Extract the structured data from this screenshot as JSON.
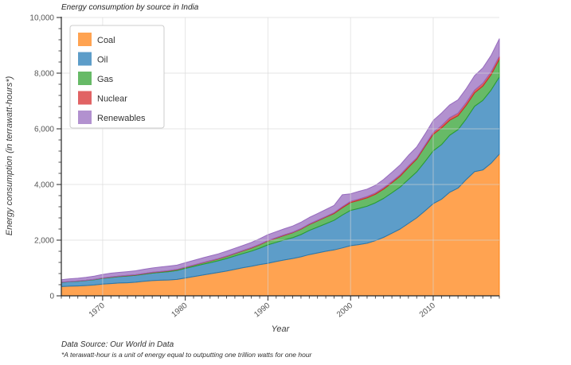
{
  "title": "Energy consumption by source in India",
  "x_axis": {
    "label": "Year",
    "ticks": [
      1970,
      1980,
      1990,
      2000,
      2010
    ],
    "range": [
      1965,
      2018
    ]
  },
  "y_axis": {
    "label": "Energy consumption (in terrawatt-hours*)",
    "ticks": [
      0,
      2000,
      4000,
      6000,
      8000,
      10000
    ],
    "tick_labels": [
      "0",
      "2,000",
      "4,000",
      "6,000",
      "8,000",
      "10,000"
    ],
    "minor_step": 400,
    "range": [
      0,
      10000
    ]
  },
  "footer": {
    "source": "Data Source: Our World in Data",
    "note": "*A terawatt-hour is a unit of energy equal to outputting one trillion watts for one hour"
  },
  "style": {
    "grid_color": "#d6d6d6",
    "spine_color": "#262626",
    "tick_label_color": "#555555",
    "legend_border_color": "#cccccc",
    "legend_label_color": "#333333",
    "fill_opacity": 0.72
  },
  "chart_data": {
    "type": "area",
    "stacked": true,
    "title": "Energy consumption by source in India",
    "xlabel": "Year",
    "ylabel": "Energy consumption (in terrawatt-hours*)",
    "xlim": [
      1965,
      2018
    ],
    "ylim": [
      0,
      10000
    ],
    "grid": true,
    "legend_position": "top-left",
    "x": [
      1965,
      1966,
      1967,
      1968,
      1969,
      1970,
      1971,
      1972,
      1973,
      1974,
      1975,
      1976,
      1977,
      1978,
      1979,
      1980,
      1981,
      1982,
      1983,
      1984,
      1985,
      1986,
      1987,
      1988,
      1989,
      1990,
      1991,
      1992,
      1993,
      1994,
      1995,
      1996,
      1997,
      1998,
      1999,
      2000,
      2001,
      2002,
      2003,
      2004,
      2005,
      2006,
      2007,
      2008,
      2009,
      2010,
      2011,
      2012,
      2013,
      2014,
      2015,
      2016,
      2017,
      2018
    ],
    "series": [
      {
        "name": "Coal",
        "color": "#ff7f0e",
        "values": [
          330,
          345,
          355,
          370,
          390,
          420,
          440,
          460,
          470,
          490,
          520,
          545,
          560,
          570,
          590,
          640,
          690,
          740,
          790,
          840,
          890,
          950,
          1010,
          1060,
          1120,
          1170,
          1230,
          1290,
          1340,
          1400,
          1480,
          1540,
          1600,
          1650,
          1720,
          1800,
          1840,
          1890,
          1980,
          2100,
          2250,
          2400,
          2600,
          2800,
          3050,
          3310,
          3470,
          3720,
          3870,
          4180,
          4460,
          4520,
          4760,
          5090
        ]
      },
      {
        "name": "Oil",
        "color": "#1f77b4",
        "values": [
          150,
          160,
          168,
          178,
          190,
          205,
          218,
          230,
          240,
          245,
          255,
          268,
          282,
          300,
          320,
          345,
          365,
          385,
          400,
          420,
          450,
          480,
          510,
          545,
          590,
          660,
          690,
          720,
          750,
          800,
          870,
          930,
          990,
          1060,
          1180,
          1270,
          1300,
          1330,
          1360,
          1400,
          1450,
          1510,
          1580,
          1650,
          1770,
          1900,
          1960,
          2050,
          2100,
          2180,
          2350,
          2500,
          2630,
          2770
        ]
      },
      {
        "name": "Gas",
        "color": "#2ca02c",
        "values": [
          8,
          9,
          9,
          10,
          11,
          12,
          13,
          14,
          15,
          17,
          20,
          22,
          24,
          27,
          30,
          35,
          42,
          50,
          58,
          66,
          75,
          85,
          97,
          110,
          125,
          140,
          152,
          165,
          178,
          193,
          210,
          222,
          235,
          248,
          262,
          280,
          290,
          300,
          310,
          335,
          360,
          390,
          430,
          460,
          540,
          590,
          600,
          540,
          500,
          490,
          480,
          510,
          550,
          640
        ]
      },
      {
        "name": "Nuclear",
        "color": "#d62728",
        "values": [
          1,
          1,
          1,
          2,
          3,
          7,
          8,
          8,
          8,
          8,
          9,
          10,
          9,
          9,
          8,
          8,
          10,
          10,
          11,
          12,
          13,
          14,
          15,
          16,
          16,
          17,
          18,
          19,
          19,
          20,
          20,
          22,
          25,
          30,
          38,
          45,
          48,
          50,
          45,
          47,
          50,
          52,
          55,
          45,
          50,
          70,
          85,
          90,
          92,
          95,
          100,
          105,
          103,
          105
        ]
      },
      {
        "name": "Renewables",
        "color": "#9467bd",
        "values": [
          90,
          95,
          98,
          105,
          115,
          125,
          135,
          130,
          135,
          140,
          150,
          155,
          158,
          162,
          155,
          160,
          165,
          168,
          172,
          170,
          175,
          180,
          178,
          190,
          200,
          210,
          215,
          218,
          222,
          230,
          235,
          240,
          250,
          260,
          430,
          270,
          275,
          265,
          275,
          300,
          330,
          350,
          380,
          390,
          400,
          430,
          450,
          460,
          480,
          500,
          520,
          550,
          590,
          630
        ]
      }
    ]
  }
}
